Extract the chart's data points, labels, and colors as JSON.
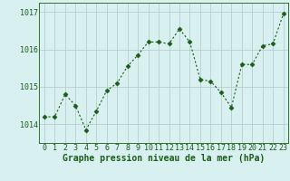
{
  "x": [
    0,
    1,
    2,
    3,
    4,
    5,
    6,
    7,
    8,
    9,
    10,
    11,
    12,
    13,
    14,
    15,
    16,
    17,
    18,
    19,
    20,
    21,
    22,
    23
  ],
  "y": [
    1014.2,
    1014.2,
    1014.8,
    1014.5,
    1013.85,
    1014.35,
    1014.9,
    1015.1,
    1015.55,
    1015.85,
    1016.2,
    1016.2,
    1016.15,
    1016.55,
    1016.2,
    1015.2,
    1015.15,
    1014.85,
    1014.45,
    1015.6,
    1015.6,
    1016.1,
    1016.15,
    1016.95
  ],
  "line_color": "#1a5c1a",
  "marker": "D",
  "marker_size": 2.5,
  "bg_color": "#d8f0f0",
  "grid_color": "#b0c8c8",
  "xlabel": "Graphe pression niveau de la mer (hPa)",
  "xlabel_fontsize": 7,
  "tick_color": "#1a5c1a",
  "tick_fontsize": 6,
  "ylim": [
    1013.5,
    1017.25
  ],
  "yticks": [
    1014,
    1015,
    1016,
    1017
  ],
  "xlim": [
    -0.5,
    23.5
  ]
}
